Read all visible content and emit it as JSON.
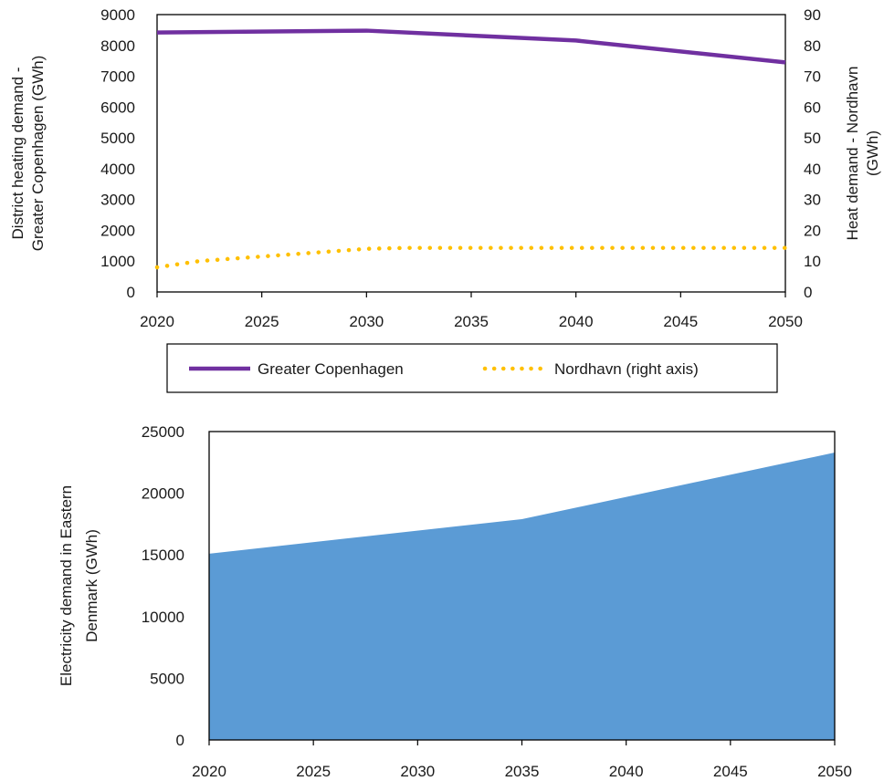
{
  "chart_data": [
    {
      "type": "line",
      "x": [
        2020,
        2030,
        2040,
        2050
      ],
      "xticks": [
        2020,
        2025,
        2030,
        2035,
        2040,
        2045,
        2050
      ],
      "xlim": [
        2020,
        2050
      ],
      "series": [
        {
          "name": "Greater Copenhagen",
          "axis": "left",
          "style": "solid",
          "color": "#7030A0",
          "x": [
            2020,
            2030,
            2040,
            2050
          ],
          "values": [
            8420,
            8480,
            8160,
            7450
          ]
        },
        {
          "name": "Nordhavn (right axis)",
          "axis": "right",
          "style": "dotted",
          "color": "#FFC000",
          "x": [
            2020,
            2022,
            2024,
            2026,
            2028,
            2030,
            2032,
            2040,
            2050
          ],
          "values": [
            8,
            10,
            11,
            12,
            13,
            14,
            14.3,
            14.3,
            14.3
          ]
        }
      ],
      "ylabel": [
        "District heating demand -",
        "Greater Copenhagen (GWh)"
      ],
      "y2label": [
        "Heat demand - Nordhavn",
        "(GWh)"
      ],
      "ylim": [
        0,
        9000
      ],
      "yticks": [
        0,
        1000,
        2000,
        3000,
        4000,
        5000,
        6000,
        7000,
        8000,
        9000
      ],
      "y2lim": [
        0,
        90
      ],
      "y2ticks": [
        0,
        10,
        20,
        30,
        40,
        50,
        60,
        70,
        80,
        90
      ],
      "grid": false,
      "legend_position": "bottom"
    },
    {
      "type": "area",
      "x": [
        2020,
        2035,
        2050
      ],
      "xticks": [
        2020,
        2025,
        2030,
        2035,
        2040,
        2045,
        2050
      ],
      "xlim": [
        2020,
        2050
      ],
      "series": [
        {
          "color": "#5B9BD5",
          "x": [
            2020,
            2035,
            2050
          ],
          "values": [
            15100,
            17900,
            23300
          ]
        }
      ],
      "ylabel": [
        "Electricity demand  in Eastern",
        "Denmark (GWh)"
      ],
      "ylim": [
        0,
        25000
      ],
      "yticks": [
        0,
        5000,
        10000,
        15000,
        20000,
        25000
      ],
      "grid": false,
      "legend_position": "none"
    }
  ]
}
